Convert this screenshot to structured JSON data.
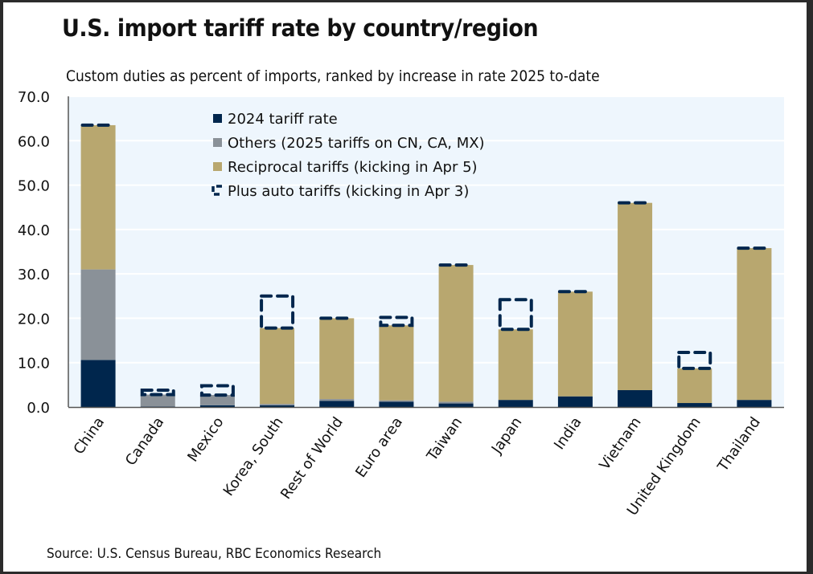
{
  "chart_data": {
    "type": "bar",
    "stacked": true,
    "title": "U.S. import tariff rate by country/region",
    "subtitle": "Custom duties as percent of imports, ranked by increase in rate 2025 to-date",
    "source": "Source: U.S. Census Bureau, RBC Economics Research",
    "xlabel": "",
    "ylabel": "",
    "ylim": [
      0,
      70
    ],
    "yticks": [
      "0.0",
      "10.0",
      "20.0",
      "30.0",
      "40.0",
      "50.0",
      "60.0",
      "70.0"
    ],
    "grid": true,
    "legend_position": "top-center",
    "categories": [
      "China",
      "Canada",
      "Mexico",
      "Korea, South",
      "Rest of World",
      "Euro area",
      "Taiwan",
      "Japan",
      "India",
      "Vietnam",
      "United Kingdom",
      "Thailand"
    ],
    "series": [
      {
        "name": "2024 tariff rate",
        "color": "#00264d",
        "values": [
          10.6,
          0.1,
          0.4,
          0.4,
          1.4,
          1.2,
          0.8,
          1.6,
          2.4,
          3.8,
          0.9,
          1.6
        ]
      },
      {
        "name": "Others (2025 tariffs on CN, CA, MX)",
        "color": "#8a9198",
        "values": [
          20.4,
          2.7,
          2.3,
          0.3,
          0.4,
          0.3,
          0.4,
          0.0,
          0.0,
          0.0,
          0.0,
          0.0
        ]
      },
      {
        "name": "Reciprocal tariffs (kicking in Apr 5)",
        "color": "#b8a76f",
        "values": [
          32.5,
          0.0,
          0.0,
          17.1,
          18.2,
          16.9,
          30.8,
          15.9,
          23.6,
          42.2,
          7.8,
          34.2
        ]
      },
      {
        "name": "Plus auto tariffs (kicking in Apr 3)",
        "style": "dashed-outline",
        "color": "#00264d",
        "totals": [
          63.5,
          3.8,
          4.8,
          25.0,
          20.0,
          20.2,
          32.0,
          24.2,
          26.0,
          46.0,
          12.3,
          35.8
        ]
      }
    ]
  }
}
